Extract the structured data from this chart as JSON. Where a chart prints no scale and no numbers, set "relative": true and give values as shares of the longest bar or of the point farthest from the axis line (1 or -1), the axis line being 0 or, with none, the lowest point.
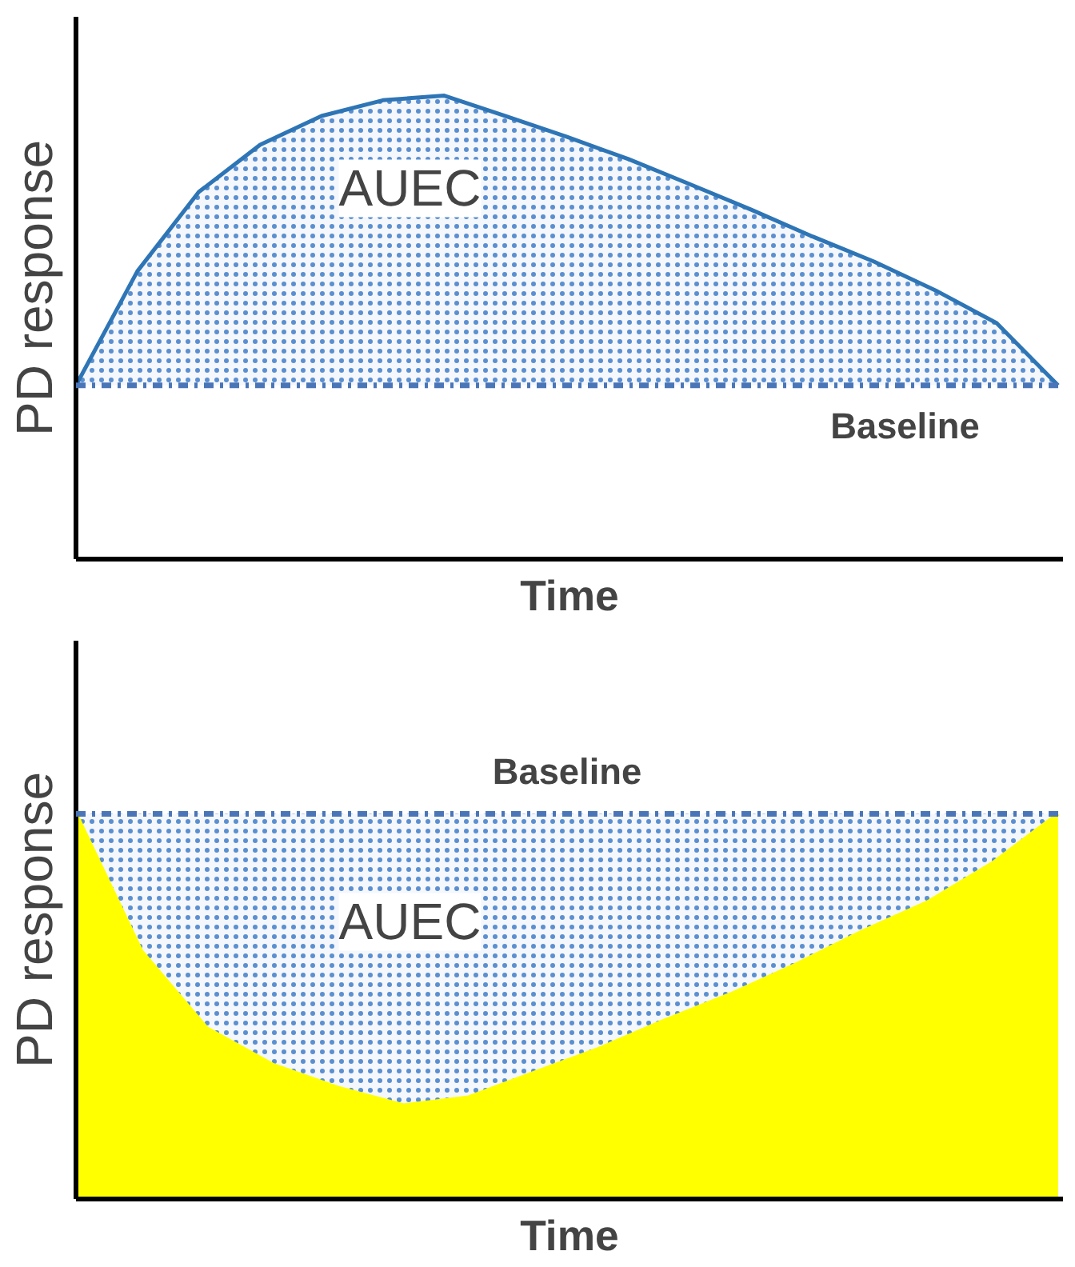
{
  "chart_data": [
    {
      "type": "line",
      "relative": true,
      "xlabel": "Time",
      "ylabel": "PD response",
      "annotations": [
        "AUEC"
      ],
      "categories": [
        null,
        null,
        null,
        null,
        null,
        null,
        null,
        null,
        null,
        null,
        null,
        null,
        null,
        null,
        null,
        null,
        null
      ],
      "series": [
        {
          "color": "#2e75b6",
          "values": [
            0.375,
            0.621,
            0.792,
            0.894,
            0.956,
            0.99,
            1,
            0.956,
            0.911,
            0.863,
            0.809,
            0.754,
            0.696,
            0.642,
            0.58,
            0.509,
            0.375
          ],
          "lower": [
            0.375,
            0.375,
            0.375,
            0.375,
            0.375,
            0.375,
            0.375,
            0.375,
            0.375,
            0.375,
            0.375,
            0.375,
            0.375,
            0.375,
            0.375,
            0.375,
            0.375
          ],
          "upper": [
            0.375,
            0.621,
            0.792,
            0.894,
            0.956,
            0.99,
            1,
            0.956,
            0.911,
            0.863,
            0.809,
            0.754,
            0.696,
            0.642,
            0.58,
            0.509,
            0.375
          ]
        }
      ],
      "ref_lines": [
        {
          "axis": "y",
          "value": 0.375,
          "label": "Baseline",
          "color": "#4a76b8",
          "line_style": "dashdot"
        }
      ]
    },
    {
      "type": "area",
      "relative": true,
      "xlabel": "Time",
      "ylabel": "PD response",
      "annotations": [
        "AUEC"
      ],
      "categories": [
        null,
        null,
        null,
        null,
        null,
        null,
        null,
        null,
        null,
        null,
        null,
        null,
        null,
        null,
        null,
        null
      ],
      "series": [
        {
          "color": "#ffff00",
          "values": [
            1,
            0.643,
            0.443,
            0.349,
            0.289,
            0.243,
            0.264,
            0.328,
            0.391,
            0.464,
            0.532,
            0.609,
            0.694,
            0.77,
            0.872,
            1
          ],
          "lower": [
            1,
            0.643,
            0.443,
            0.349,
            0.289,
            0.243,
            0.264,
            0.328,
            0.391,
            0.464,
            0.532,
            0.609,
            0.694,
            0.77,
            0.872,
            1
          ],
          "upper": [
            1,
            1,
            1,
            1,
            1,
            1,
            1,
            1,
            1,
            1,
            1,
            1,
            1,
            1,
            1,
            1
          ]
        }
      ],
      "ref_lines": [
        {
          "axis": "y",
          "value": 1,
          "label": "Baseline",
          "color": "#4a76b8",
          "line_style": "dashdot"
        }
      ]
    }
  ]
}
